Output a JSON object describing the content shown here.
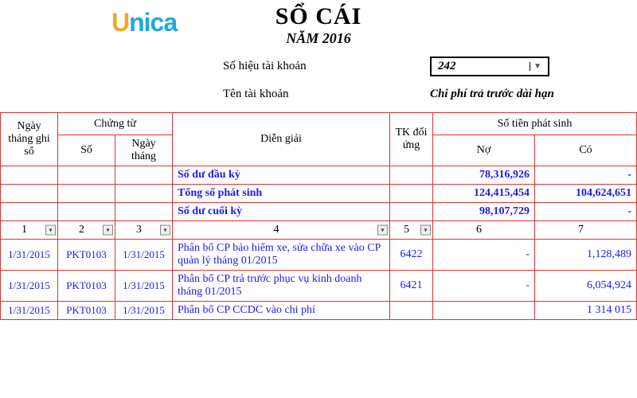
{
  "logo": {
    "text": "Unica"
  },
  "title": {
    "main": "SỔ CÁI",
    "year": "NĂM 2016"
  },
  "header_fields": {
    "account_number_label": "Số hiệu tài khoản",
    "account_number_value": "242",
    "account_name_label": "Tên tài khoản",
    "account_name_value": "Chi phí trả trước dài hạn"
  },
  "table": {
    "columns": {
      "date": "Ngày tháng ghi sổ",
      "voucher_group": "Chứng từ",
      "voucher_no": "Số",
      "voucher_date": "Ngày tháng",
      "description": "Diễn giải",
      "corr_account": "TK đối ứng",
      "amount_group": "Số tiền phát sinh",
      "debit": "Nợ",
      "credit": "Có"
    },
    "summary": [
      {
        "label": "Số dư đầu kỳ",
        "debit": "78,316,926",
        "credit": "-"
      },
      {
        "label": "Tổng số phát sinh",
        "debit": "124,415,454",
        "credit": "104,624,651"
      },
      {
        "label": "Số dư cuối kỳ",
        "debit": "98,107,729",
        "credit": "-"
      }
    ],
    "colnums": [
      "1",
      "2",
      "3",
      "4",
      "5",
      "6",
      "7"
    ],
    "rows": [
      {
        "date": "1/31/2015",
        "vno": "PKT0103",
        "vdate": "1/31/2015",
        "desc": "Phân bổ CP bảo hiểm xe, sửa chữa xe vào CP quản lý tháng 01/2015",
        "tk": "6422",
        "debit": "-",
        "credit": "1,128,489"
      },
      {
        "date": "1/31/2015",
        "vno": "PKT0103",
        "vdate": "1/31/2015",
        "desc": "Phân bổ CP trả trước phục vụ kinh doanh tháng 01/2015",
        "tk": "6421",
        "debit": "-",
        "credit": "6,054,924"
      },
      {
        "date": "1/31/2015",
        "vno": "PKT0103",
        "vdate": "1/31/2015",
        "desc": "Phân bổ CP CCDC vào chi phí",
        "tk": "",
        "debit": "",
        "credit": "1 314 015"
      }
    ]
  },
  "colors": {
    "border": "#d33",
    "data_text": "#1a1af0",
    "logo_u": "#f5a623",
    "logo_rest": "#1fa8d8"
  }
}
